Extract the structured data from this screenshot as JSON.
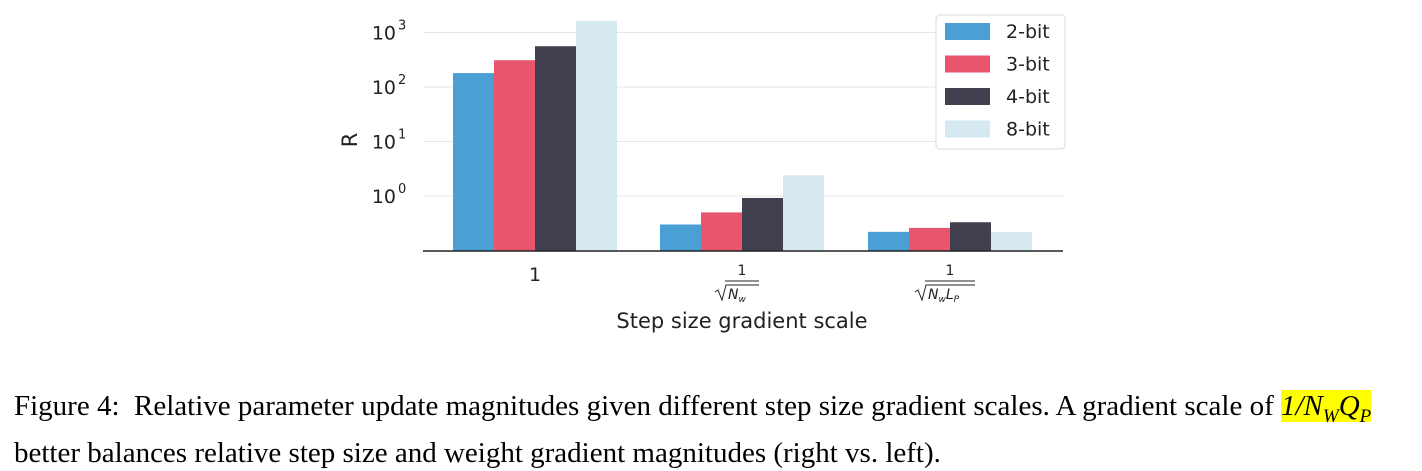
{
  "chart_data": {
    "type": "bar",
    "ylabel": "R",
    "xlabel": "Step size gradient scale",
    "yscale": "log",
    "yticks": [
      {
        "base": "10",
        "exp": "0",
        "value": 1
      },
      {
        "base": "10",
        "exp": "1",
        "value": 10
      },
      {
        "base": "10",
        "exp": "2",
        "value": 100
      },
      {
        "base": "10",
        "exp": "3",
        "value": 1000
      }
    ],
    "ylim": [
      0.2,
      1400
    ],
    "grid": true,
    "legend_position": "top-right",
    "categories": [
      {
        "label": "1",
        "num": "",
        "den": ""
      },
      {
        "label": "",
        "num": "1",
        "den": "N",
        "den_sub": "w"
      },
      {
        "label": "",
        "num": "1",
        "den": "N",
        "den_sub": "w",
        "den2": "L",
        "den2_sub": "P"
      }
    ],
    "series": [
      {
        "name": "2-bit",
        "color": "#4a9fd5",
        "values": [
          180,
          0.3,
          0.22
        ]
      },
      {
        "name": "3-bit",
        "color": "#e8566e",
        "values": [
          310,
          0.5,
          0.26
        ]
      },
      {
        "name": "4-bit",
        "color": "#42404e",
        "values": [
          560,
          0.92,
          0.33
        ]
      },
      {
        "name": "8-bit",
        "color": "#d6e8f0",
        "values": [
          1620,
          2.4,
          0.22
        ]
      }
    ]
  },
  "caption": {
    "prefix": "Figure 4: Relative parameter update magnitudes given different step size gradient scales. A gradient scale of ",
    "highlight": "1/N",
    "highlight_sub": "W",
    "highlight_tail": "Q",
    "highlight_tail_sub": "P",
    "suffix": " better balances relative step size and weight gradient magnitudes (right vs. left)."
  }
}
